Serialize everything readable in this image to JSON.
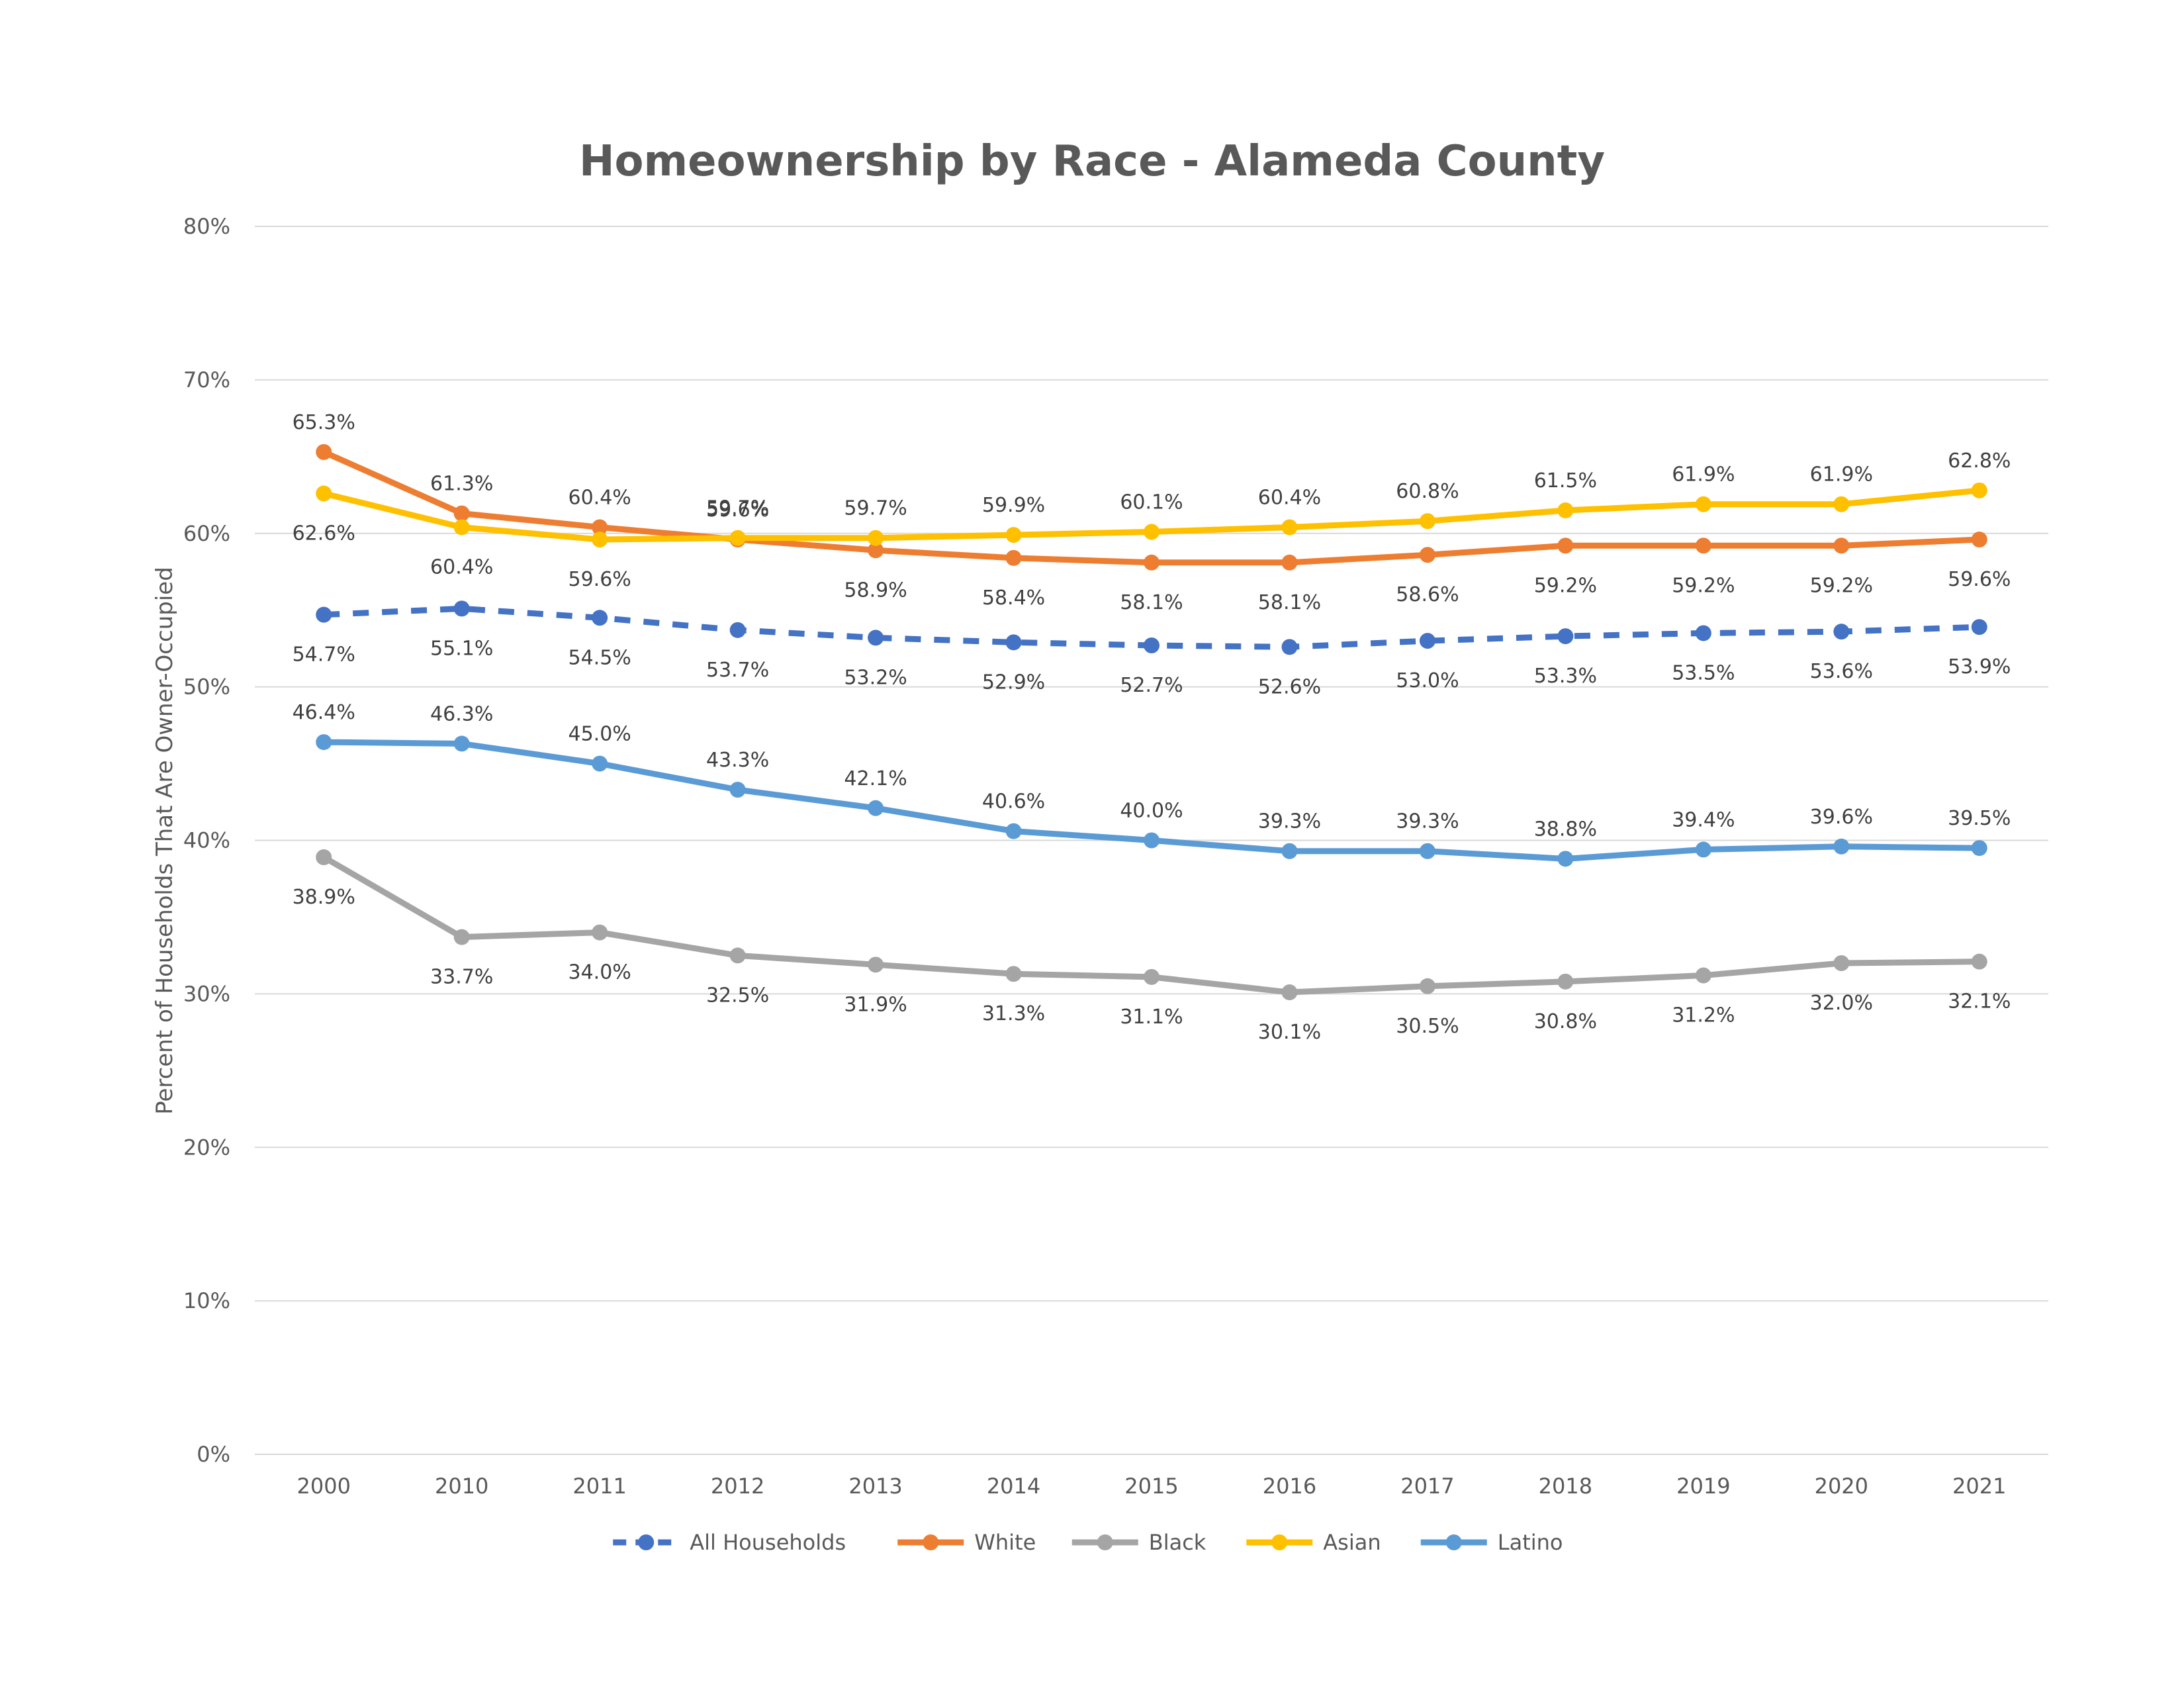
{
  "chart_data": {
    "type": "line",
    "title": "Homeownership by Race - Alameda County",
    "xlabel": "",
    "ylabel": "Percent of Households That Are Owner-Occupied",
    "ylim": [
      0,
      80
    ],
    "y_ticks": [
      "0%",
      "10%",
      "20%",
      "30%",
      "40%",
      "50%",
      "60%",
      "70%",
      "80%"
    ],
    "y_tick_values": [
      0,
      10,
      20,
      30,
      40,
      50,
      60,
      70,
      80
    ],
    "x": [
      "2000",
      "2010",
      "2011",
      "2012",
      "2013",
      "2014",
      "2015",
      "2016",
      "2017",
      "2018",
      "2019",
      "2020",
      "2021"
    ],
    "grid": "horizontal",
    "legend_position": "bottom",
    "series": [
      {
        "name": "All Households",
        "color": "#4472C4",
        "dashed": true,
        "label_position": "below",
        "values": [
          54.7,
          55.1,
          54.5,
          53.7,
          53.2,
          52.9,
          52.7,
          52.6,
          53.0,
          53.3,
          53.5,
          53.6,
          53.9
        ],
        "labels": [
          "54.7%",
          "55.1%",
          "54.5%",
          "53.7%",
          "53.2%",
          "52.9%",
          "52.7%",
          "52.6%",
          "53.0%",
          "53.3%",
          "53.5%",
          "53.6%",
          "53.9%"
        ]
      },
      {
        "name": "White",
        "color": "#ED7D31",
        "dashed": false,
        "label_position": [
          "above",
          "above",
          "above",
          "above",
          "below",
          "below",
          "below",
          "below",
          "below",
          "below",
          "below",
          "below",
          "below"
        ],
        "values": [
          65.3,
          61.3,
          60.4,
          59.6,
          58.9,
          58.4,
          58.1,
          58.1,
          58.6,
          59.2,
          59.2,
          59.2,
          59.6
        ],
        "labels": [
          "65.3%",
          "61.3%",
          "60.4%",
          "59.6%",
          "58.9%",
          "58.4%",
          "58.1%",
          "58.1%",
          "58.6%",
          "59.2%",
          "59.2%",
          "59.2%",
          "59.6%"
        ]
      },
      {
        "name": "Black",
        "color": "#A5A5A5",
        "dashed": false,
        "label_position": "below",
        "values": [
          38.9,
          33.7,
          34.0,
          32.5,
          31.9,
          31.3,
          31.1,
          30.1,
          30.5,
          30.8,
          31.2,
          32.0,
          32.1
        ],
        "labels": [
          "38.9%",
          "33.7%",
          "34.0%",
          "32.5%",
          "31.9%",
          "31.3%",
          "31.1%",
          "30.1%",
          "30.5%",
          "30.8%",
          "31.2%",
          "32.0%",
          "32.1%"
        ]
      },
      {
        "name": "Asian",
        "color": "#FFC000",
        "dashed": false,
        "label_position": [
          "below",
          "below",
          "below",
          "above",
          "above",
          "above",
          "above",
          "above",
          "above",
          "above",
          "above",
          "above",
          "above"
        ],
        "values": [
          62.6,
          60.4,
          59.6,
          59.7,
          59.7,
          59.9,
          60.1,
          60.4,
          60.8,
          61.5,
          61.9,
          61.9,
          62.8
        ],
        "labels": [
          "62.6%",
          "60.4%",
          "59.6%",
          "59.7%",
          "59.7%",
          "59.9%",
          "60.1%",
          "60.4%",
          "60.8%",
          "61.5%",
          "61.9%",
          "61.9%",
          "62.8%"
        ]
      },
      {
        "name": "Latino",
        "color": "#5B9BD5",
        "dashed": false,
        "label_position": "above",
        "values": [
          46.4,
          46.3,
          45.0,
          43.3,
          42.1,
          40.6,
          40.0,
          39.3,
          39.3,
          38.8,
          39.4,
          39.6,
          39.5
        ],
        "labels": [
          "46.4%",
          "46.3%",
          "45.0%",
          "43.3%",
          "42.1%",
          "40.6%",
          "40.0%",
          "39.3%",
          "39.3%",
          "38.8%",
          "39.4%",
          "39.6%",
          "39.5%"
        ]
      }
    ]
  }
}
